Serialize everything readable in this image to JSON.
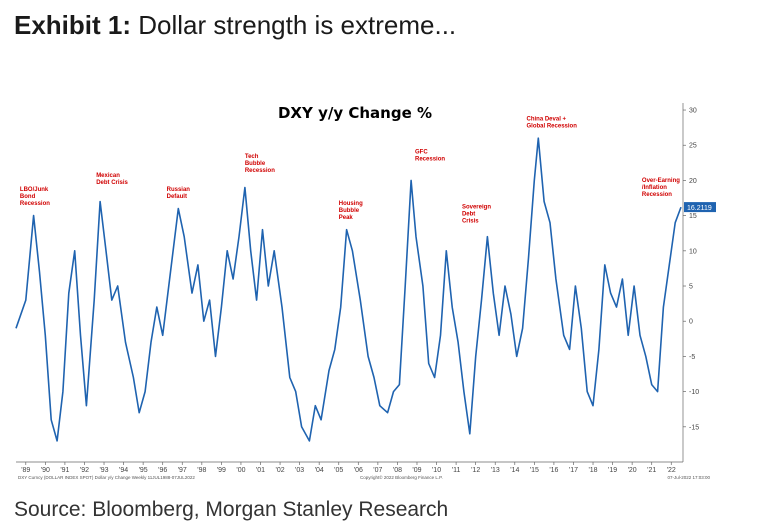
{
  "header": {
    "exhibit_label": "Exhibit 1:",
    "headline": "Dollar strength is extreme..."
  },
  "source": "Source: Bloomberg, Morgan Stanley Research",
  "chart_data": {
    "type": "line",
    "title": "DXY y/y Change %",
    "series": [
      {
        "color": "#1f63b0",
        "x": [
          1988.5,
          1989,
          1989.4,
          1989.7,
          1990,
          1990.3,
          1990.6,
          1990.9,
          1991.2,
          1991.5,
          1991.8,
          1992.1,
          1992.5,
          1992.8,
          1993.1,
          1993.4,
          1993.7,
          1994.1,
          1994.5,
          1994.8,
          1995.1,
          1995.4,
          1995.7,
          1996,
          1996.4,
          1996.8,
          1997.1,
          1997.5,
          1997.8,
          1998.1,
          1998.4,
          1998.7,
          1999,
          1999.3,
          1999.6,
          1999.9,
          2000.2,
          2000.5,
          2000.8,
          2001.1,
          2001.4,
          2001.7,
          2002.1,
          2002.5,
          2002.8,
          2003.1,
          2003.5,
          2003.8,
          2004.1,
          2004.5,
          2004.8,
          2005.1,
          2005.4,
          2005.7,
          2006.1,
          2006.5,
          2006.8,
          2007.1,
          2007.5,
          2007.8,
          2008.1,
          2008.4,
          2008.7,
          2008.95,
          2009.3,
          2009.6,
          2009.9,
          2010.2,
          2010.5,
          2010.8,
          2011.1,
          2011.4,
          2011.7,
          2012.0,
          2012.3,
          2012.6,
          2012.9,
          2013.2,
          2013.5,
          2013.8,
          2014.1,
          2014.4,
          2014.7,
          2015.0,
          2015.2,
          2015.5,
          2015.8,
          2016.1,
          2016.5,
          2016.8,
          2017.1,
          2017.4,
          2017.7,
          2018.0,
          2018.3,
          2018.6,
          2018.9,
          2019.2,
          2019.5,
          2019.8,
          2020.1,
          2020.4,
          2020.7,
          2021.0,
          2021.3,
          2021.6,
          2021.9,
          2022.2,
          2022.5
        ],
        "values": [
          -1,
          3,
          15,
          7,
          -2,
          -14,
          -17,
          -10,
          4,
          10,
          -2,
          -12,
          3,
          17,
          10,
          3,
          5,
          -3,
          -8,
          -13,
          -10,
          -3,
          2,
          -2,
          7,
          16,
          12,
          4,
          8,
          0,
          3,
          -5,
          2,
          10,
          6,
          12,
          19,
          10,
          3,
          13,
          5,
          10,
          2,
          -8,
          -10,
          -15,
          -17,
          -12,
          -14,
          -7,
          -4,
          2,
          13,
          10,
          3,
          -5,
          -8,
          -12,
          -13,
          -10,
          -9,
          5,
          20,
          12,
          5,
          -6,
          -8,
          -2,
          10,
          2,
          -3,
          -10,
          -16,
          -5,
          3,
          12,
          4,
          -2,
          5,
          1,
          -5,
          -1,
          9,
          20,
          26,
          17,
          14,
          6,
          -2,
          -4,
          5,
          -1,
          -10,
          -12,
          -4,
          8,
          4,
          2,
          6,
          -2,
          5,
          -2,
          -5,
          -9,
          -10,
          2,
          8,
          14,
          16.2119
        ]
      }
    ],
    "y_ticks": [
      "30",
      "25",
      "20",
      "15",
      "10",
      "5",
      "0",
      "-5",
      "-10",
      "-15"
    ],
    "ylim": [
      -20,
      31
    ],
    "xlim": [
      1988.5,
      2022.6
    ],
    "x_tick_labels": [
      "'89",
      "'90",
      "'91",
      "'92",
      "'93",
      "'94",
      "'95",
      "'96",
      "'97",
      "'98",
      "'99",
      "'00",
      "'01",
      "'02",
      "'03",
      "'04",
      "'05",
      "'06",
      "'07",
      "'08",
      "'09",
      "'10",
      "'11",
      "'12",
      "'13",
      "'14",
      "'15",
      "'16",
      "'17",
      "'18",
      "'19",
      "'20",
      "'21",
      "'22"
    ],
    "last_value_label": "16.2119",
    "annotations": [
      {
        "text": [
          "LBO/Junk",
          "Bond",
          "Recession"
        ],
        "x": 1988.7,
        "y": 18.5
      },
      {
        "text": [
          "Mexican",
          "Debt Crisis"
        ],
        "x": 1992.6,
        "y": 20.5
      },
      {
        "text": [
          "Russian",
          "Default"
        ],
        "x": 1996.2,
        "y": 18.5
      },
      {
        "text": [
          "Tech",
          "Bubble",
          "Recession"
        ],
        "x": 2000.2,
        "y": 23.2
      },
      {
        "text": [
          "Housing",
          "Bubble",
          "Peak"
        ],
        "x": 2005.0,
        "y": 16.5
      },
      {
        "text": [
          "GFC",
          "Recession"
        ],
        "x": 2008.9,
        "y": 23.8
      },
      {
        "text": [
          "Sovereign",
          "Debt",
          "Crisis"
        ],
        "x": 2011.3,
        "y": 16.0
      },
      {
        "text": [
          "China Deval +",
          "Global Recession"
        ],
        "x": 2014.6,
        "y": 28.5
      },
      {
        "text": [
          "Over-Earning",
          "/Inflation",
          "Recession"
        ],
        "x": 2020.5,
        "y": 19.8
      }
    ],
    "footer_left": "DXY Curncy (DOLLAR INDEX SPOT) Dollar y/y Change Weekly 11JUL1988-07JUL2022",
    "footer_center": "Copyright© 2022 Bloomberg Finance L.P.",
    "footer_right": "07-Jul-2022 17:03:00",
    "grid": false
  }
}
